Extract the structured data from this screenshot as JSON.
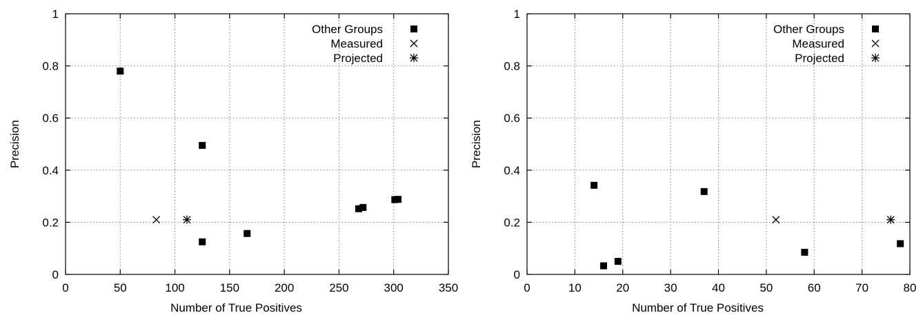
{
  "chart_data": [
    {
      "type": "scatter",
      "xlabel": "Number of True Positives",
      "ylabel": "Precision",
      "xlim": [
        0,
        350
      ],
      "ylim": [
        0,
        1
      ],
      "xticks": [
        0,
        50,
        100,
        150,
        200,
        250,
        300,
        350
      ],
      "yticks": [
        0,
        0.2,
        0.4,
        0.6,
        0.8,
        1
      ],
      "ytick_labels": [
        "0",
        "0.2",
        "0.4",
        "0.6",
        "0.8",
        "1"
      ],
      "grid": true,
      "legend_position": "top-right",
      "series": [
        {
          "name": "Other Groups",
          "marker": "square",
          "points": [
            [
              50,
              0.78
            ],
            [
              125,
              0.495
            ],
            [
              125,
              0.125
            ],
            [
              166,
              0.157
            ],
            [
              268,
              0.252
            ],
            [
              272,
              0.257
            ],
            [
              301,
              0.287
            ],
            [
              304,
              0.288
            ]
          ]
        },
        {
          "name": "Measured",
          "marker": "cross",
          "points": [
            [
              83,
              0.21
            ]
          ]
        },
        {
          "name": "Projected",
          "marker": "star",
          "points": [
            [
              111,
              0.21
            ]
          ]
        }
      ]
    },
    {
      "type": "scatter",
      "xlabel": "Number of True Positives",
      "ylabel": "Precision",
      "xlim": [
        0,
        80
      ],
      "ylim": [
        0,
        1
      ],
      "xticks": [
        0,
        10,
        20,
        30,
        40,
        50,
        60,
        70,
        80
      ],
      "yticks": [
        0,
        0.2,
        0.4,
        0.6,
        0.8,
        1
      ],
      "ytick_labels": [
        "0",
        "0.2",
        "0.4",
        "0.6",
        "0.8",
        "1"
      ],
      "grid": true,
      "legend_position": "top-right",
      "series": [
        {
          "name": "Other Groups",
          "marker": "square",
          "points": [
            [
              14,
              0.342
            ],
            [
              16,
              0.033
            ],
            [
              19,
              0.05
            ],
            [
              37,
              0.318
            ],
            [
              58,
              0.085
            ],
            [
              78,
              0.118
            ]
          ]
        },
        {
          "name": "Measured",
          "marker": "cross",
          "points": [
            [
              52,
              0.21
            ]
          ]
        },
        {
          "name": "Projected",
          "marker": "star",
          "points": [
            [
              76,
              0.21
            ]
          ]
        }
      ]
    }
  ]
}
